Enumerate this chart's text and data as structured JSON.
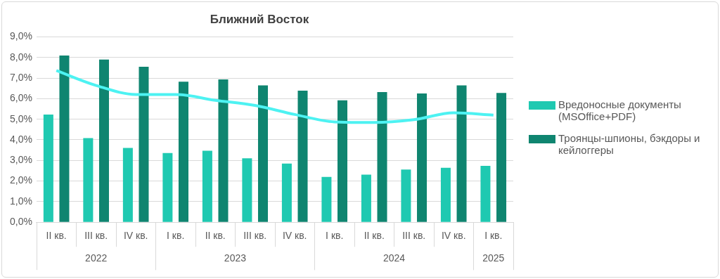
{
  "chart_data": {
    "type": "bar",
    "title": "Ближний Восток",
    "categories": [
      "II кв.",
      "III кв.",
      "IV кв.",
      "I кв.",
      "II кв.",
      "III кв.",
      "IV кв.",
      "I кв.",
      "II кв.",
      "III кв.",
      "IV кв.",
      "I кв."
    ],
    "series": [
      {
        "name": "Вредоносные документы (MSOffice+PDF)",
        "color": "#1fc9b1",
        "values": [
          5.23,
          4.08,
          3.61,
          3.36,
          3.47,
          3.1,
          2.85,
          2.2,
          2.31,
          2.56,
          2.64,
          2.74
        ]
      },
      {
        "name": "Троянцы-шпионы, бэкдоры и кейлоггеры",
        "color": "#0f8570",
        "values": [
          8.09,
          7.9,
          7.55,
          6.82,
          6.93,
          6.64,
          6.39,
          5.92,
          6.32,
          6.25,
          6.64,
          6.28
        ]
      },
      {
        "type": "line",
        "color": "#4df2f2",
        "values": [
          7.36,
          6.64,
          6.2,
          6.2,
          5.92,
          5.67,
          5.23,
          4.87,
          4.84,
          4.98,
          5.31,
          5.2
        ]
      }
    ],
    "ylim": [
      0,
      9
    ],
    "yticks": [
      {
        "value": 0,
        "label": "0,0%"
      },
      {
        "value": 1,
        "label": "1,0%"
      },
      {
        "value": 2,
        "label": "2,0%"
      },
      {
        "value": 3,
        "label": "3,0%"
      },
      {
        "value": 4,
        "label": "4,0%"
      },
      {
        "value": 5,
        "label": "5,0%"
      },
      {
        "value": 6,
        "label": "6,0%"
      },
      {
        "value": 7,
        "label": "7,0%"
      },
      {
        "value": 8,
        "label": "8,0%"
      },
      {
        "value": 9,
        "label": "9,0%"
      }
    ],
    "annotations": [
      "2022",
      "2023",
      "2024",
      "2025"
    ],
    "grid": "y",
    "legend": "right",
    "marker": "none"
  }
}
